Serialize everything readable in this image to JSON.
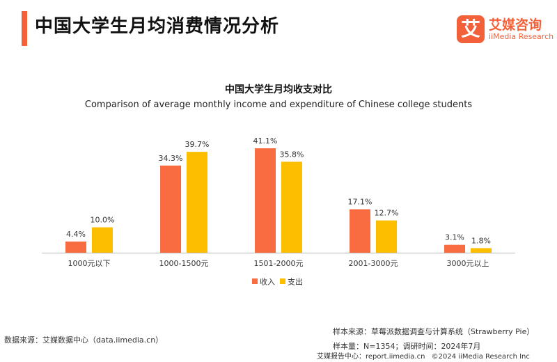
{
  "header": {
    "title": "中国大学生月均消费情况分析",
    "accent_color": "#F2613A"
  },
  "logo": {
    "mark": "艾",
    "name": "艾媒咨询",
    "subtitle": "iiMedia Research",
    "color": "#F2613A"
  },
  "chart_data": {
    "type": "bar",
    "title": "中国大学生月均收支对比",
    "subtitle": "Comparison of average monthly income and expenditure of Chinese college students",
    "categories": [
      "1000元以下",
      "1000-1500元",
      "1501-2000元",
      "2001-3000元",
      "3000元以上"
    ],
    "series": [
      {
        "name": "收入",
        "values": [
          4.4,
          34.3,
          41.1,
          17.1,
          3.1
        ],
        "labels": [
          "4.4%",
          "34.3%",
          "41.1%",
          "17.1%",
          "3.1%"
        ],
        "color": "#F96B41"
      },
      {
        "name": "支出",
        "values": [
          10.0,
          39.7,
          35.8,
          12.7,
          1.8
        ],
        "labels": [
          "10.0%",
          "39.7%",
          "35.8%",
          "12.7%",
          "1.8%"
        ],
        "color": "#FDBE00"
      }
    ],
    "ylim": [
      0,
      41.1
    ],
    "grid": false,
    "legend_position": "bottom-center"
  },
  "footer": {
    "source": "数据来源：艾媒数据中心（data.iimedia.cn）",
    "sample_source": "样本来源：草莓派数据调查与计算系统（Strawberry Pie）",
    "sample_info": "样本量：N=1354；调研时间：2024年7月",
    "report_center": "艾媒报告中心：report.iimedia.cn",
    "copyright": "©2024  iiMedia Research  Inc"
  }
}
